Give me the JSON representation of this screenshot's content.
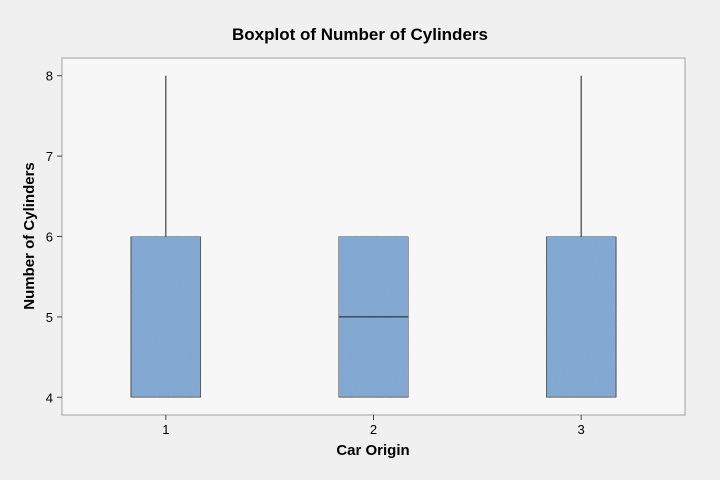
{
  "chart_data": {
    "type": "boxplot",
    "title": "Boxplot of Number of Cylinders",
    "xlabel": "Car Origin",
    "ylabel": "Number of Cylinders",
    "categories": [
      "1",
      "2",
      "3"
    ],
    "ylim": [
      3.78,
      8.22
    ],
    "yticks": [
      4,
      5,
      6,
      7,
      8
    ],
    "boxes": [
      {
        "category": "1",
        "min": 4,
        "q1": 4,
        "median": 4,
        "q3": 6,
        "max": 8
      },
      {
        "category": "2",
        "min": 4,
        "q1": 4,
        "median": 5,
        "q3": 6,
        "max": 6
      },
      {
        "category": "3",
        "min": 4,
        "q1": 4,
        "median": 4,
        "q3": 6,
        "max": 8
      }
    ],
    "grid": false,
    "colors": {
      "box_fill": "#7ba7d4",
      "box_stroke": "#1c1c1c",
      "plot_bg": "#f7f7f7",
      "outer_bg": "#f0f0f0"
    }
  }
}
